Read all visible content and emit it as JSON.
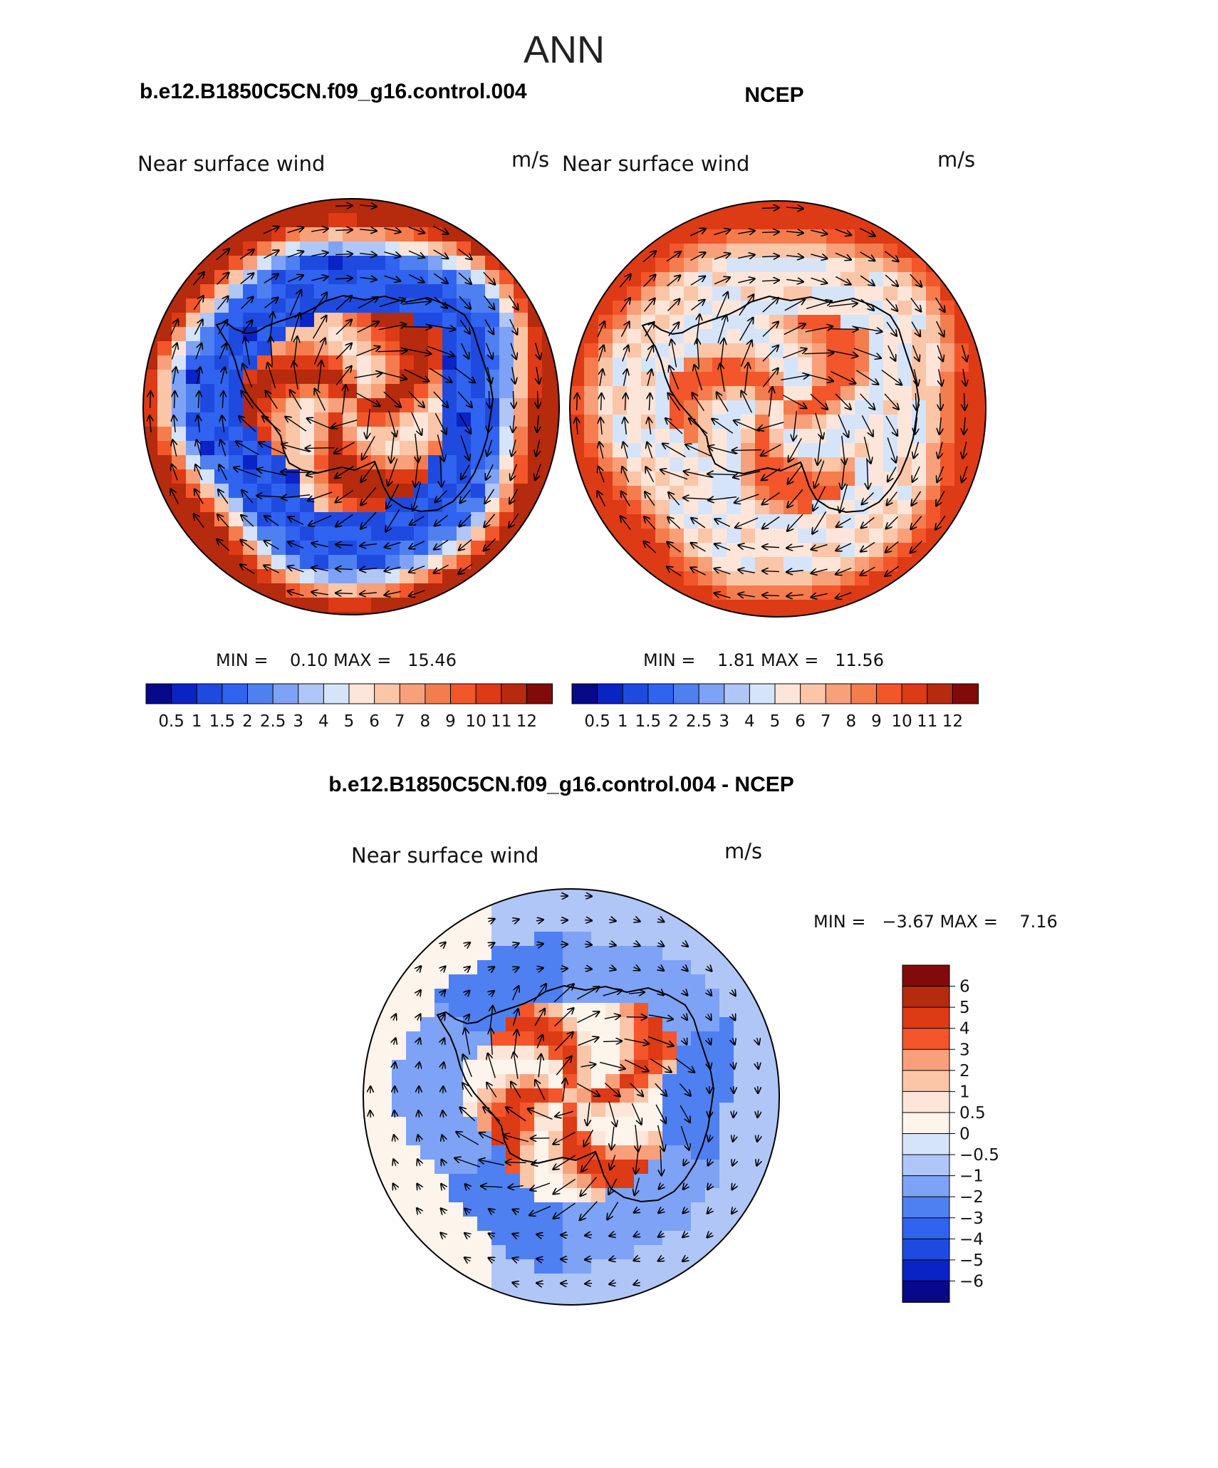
{
  "title": "ANN",
  "panels": [
    {
      "heading": "b.e12.B1850C5CN.f09_g16.control.004",
      "left_label": "Near surface wind",
      "right_label": "m/s",
      "min_max": "MIN =    0.10 MAX =   15.46",
      "min": 0.1,
      "max": 15.46,
      "ice_level": 0.12,
      "kata": 0.95,
      "ring_level": 0.92
    },
    {
      "heading": "NCEP",
      "left_label": "Near surface wind",
      "right_label": "m/s",
      "min_max": "MIN =    1.81 MAX =   11.56",
      "min": 1.81,
      "max": 11.56,
      "ice_level": 0.45,
      "kata": 0.82,
      "ring_level": 0.85
    }
  ],
  "diff": {
    "heading": "b.e12.B1850C5CN.f09_g16.control.004 - NCEP",
    "left_label": "Near surface wind",
    "right_label": "m/s",
    "min_max": "MIN =   −3.67 MAX =    7.16",
    "min": -3.67,
    "max": 7.16
  },
  "colorbar_top": {
    "labels": [
      "0.5",
      "1",
      "1.5",
      "2",
      "2.5",
      "3",
      "4",
      "5",
      "6",
      "7",
      "8",
      "9",
      "10",
      "11",
      "12"
    ],
    "colors": [
      "#08088a",
      "#0a23c4",
      "#1f4ae0",
      "#2f63f0",
      "#4f80f2",
      "#7ea2f5",
      "#b0c6f7",
      "#d6e4fa",
      "#fde6d9",
      "#fbc5a8",
      "#f8a07a",
      "#f57d4d",
      "#f2562a",
      "#dd3a16",
      "#b62a0e",
      "#830a0a"
    ]
  },
  "colorbar_diff": {
    "labels": [
      "6",
      "5",
      "4",
      "3",
      "2",
      "1",
      "0.5",
      "0",
      "−0.5",
      "−1",
      "−2",
      "−3",
      "−4",
      "−5",
      "−6"
    ],
    "colors": [
      "#830a0a",
      "#b62a0e",
      "#dd3a16",
      "#f2562a",
      "#f8a07a",
      "#fbc5a8",
      "#fde6d9",
      "#fdf4ec",
      "#d6e4fa",
      "#b0c6f7",
      "#7ea2f5",
      "#4f80f2",
      "#2f63f0",
      "#1f4ae0",
      "#0a23c4",
      "#08088a"
    ]
  }
}
